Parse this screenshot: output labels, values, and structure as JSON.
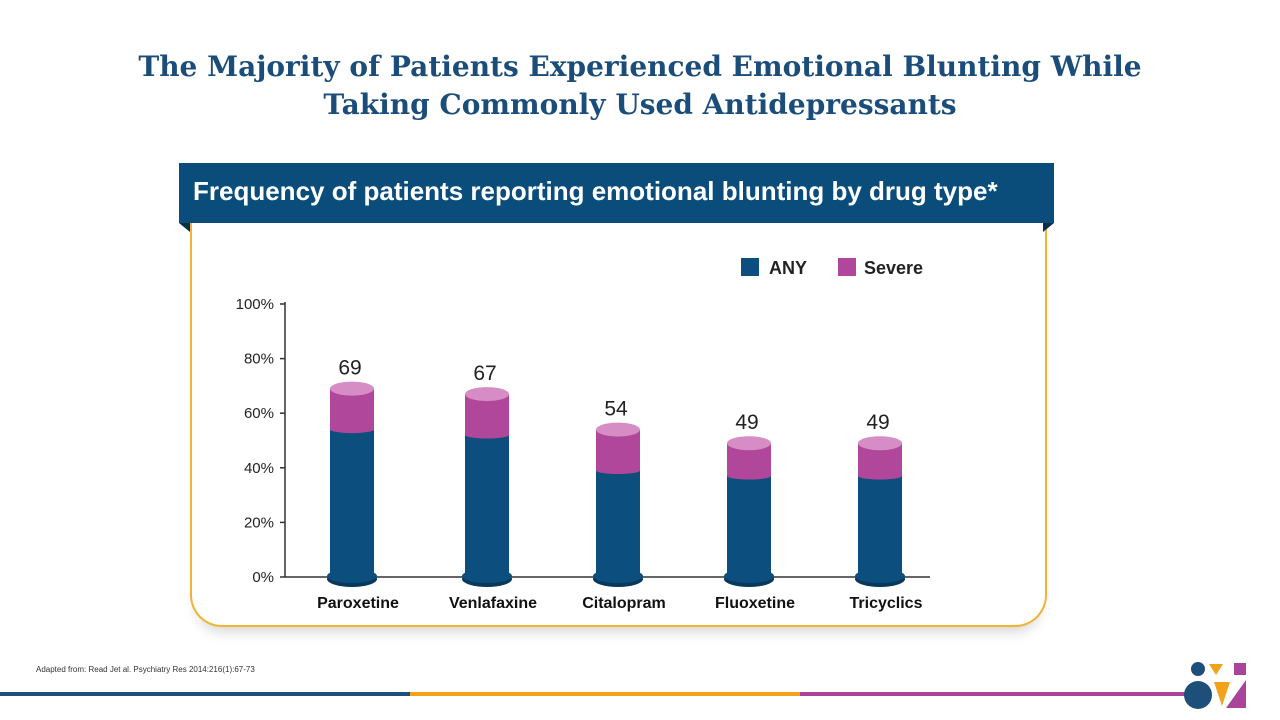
{
  "slide": {
    "title_line1": "The Majority of Patients Experienced Emotional Blunting While",
    "title_line2": "Taking Commonly Used Antidepressants",
    "banner": "Frequency of patients reporting emotional blunting by drug type*",
    "footnote": "Adapted from: Read Jet al. Psychiatry Res 2014:216(1):67-73"
  },
  "colors": {
    "any": "#0c4e7e",
    "severe": "#b0479a",
    "severe_top": "#d68cc4",
    "accent_orange": "#f2b233",
    "line_blue": "#1e4f7b",
    "line_orange": "#f2a21a",
    "line_purple": "#a9449a"
  },
  "chart_data": {
    "type": "bar",
    "categories": [
      "Paroxetine",
      "Venlafaxine",
      "Citalopram",
      "Fluoxetine",
      "Tricyclics"
    ],
    "series": [
      {
        "name": "ANY",
        "values": [
          54,
          52,
          39,
          37,
          37
        ]
      },
      {
        "name": "Severe",
        "values": [
          15,
          15,
          15,
          12,
          12
        ]
      }
    ],
    "data_labels": [
      "69",
      "67",
      "54",
      "49",
      "49"
    ],
    "totals": [
      69,
      67,
      54,
      49,
      49
    ],
    "ylim": [
      0,
      100
    ],
    "yticks": [
      "0%",
      "20%",
      "40%",
      "60%",
      "80%",
      "100%"
    ],
    "ytick_values": [
      0,
      20,
      40,
      60,
      80,
      100
    ],
    "legend_position": "top-right",
    "grid": false
  }
}
